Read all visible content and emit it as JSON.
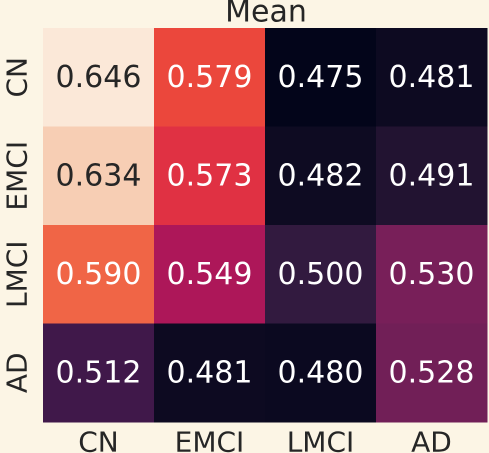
{
  "chart_data": {
    "type": "heatmap",
    "title": "Mean",
    "x_categories": [
      "CN",
      "EMCI",
      "LMCI",
      "AD"
    ],
    "y_categories": [
      "CN",
      "EMCI",
      "LMCI",
      "AD"
    ],
    "values": [
      [
        0.646,
        0.579,
        0.475,
        0.481
      ],
      [
        0.634,
        0.573,
        0.482,
        0.491
      ],
      [
        0.59,
        0.549,
        0.5,
        0.53
      ],
      [
        0.512,
        0.481,
        0.48,
        0.528
      ]
    ],
    "labels": [
      [
        "0.646",
        "0.579",
        "0.475",
        "0.481"
      ],
      [
        "0.634",
        "0.573",
        "0.482",
        "0.491"
      ],
      [
        "0.590",
        "0.549",
        "0.500",
        "0.530"
      ],
      [
        "0.512",
        "0.481",
        "0.480",
        "0.528"
      ]
    ],
    "colors": [
      [
        "#fbe8d8",
        "#eb473c",
        "#03051a",
        "#0d0a21"
      ],
      [
        "#f7ceb4",
        "#e03143",
        "#0e0b22",
        "#221331"
      ],
      [
        "#f06546",
        "#ad1759",
        "#321a3f",
        "#781f59"
      ],
      [
        "#40184a",
        "#0d0a21",
        "#0b0920",
        "#711f57"
      ]
    ],
    "text_colors": [
      [
        "#262626",
        "#ffffff",
        "#ffffff",
        "#ffffff"
      ],
      [
        "#262626",
        "#ffffff",
        "#ffffff",
        "#ffffff"
      ],
      [
        "#ffffff",
        "#ffffff",
        "#ffffff",
        "#ffffff"
      ],
      [
        "#ffffff",
        "#ffffff",
        "#ffffff",
        "#ffffff"
      ]
    ],
    "colormap": "rocket",
    "background": "#fcf5e5",
    "grid": false,
    "legend": "none"
  }
}
